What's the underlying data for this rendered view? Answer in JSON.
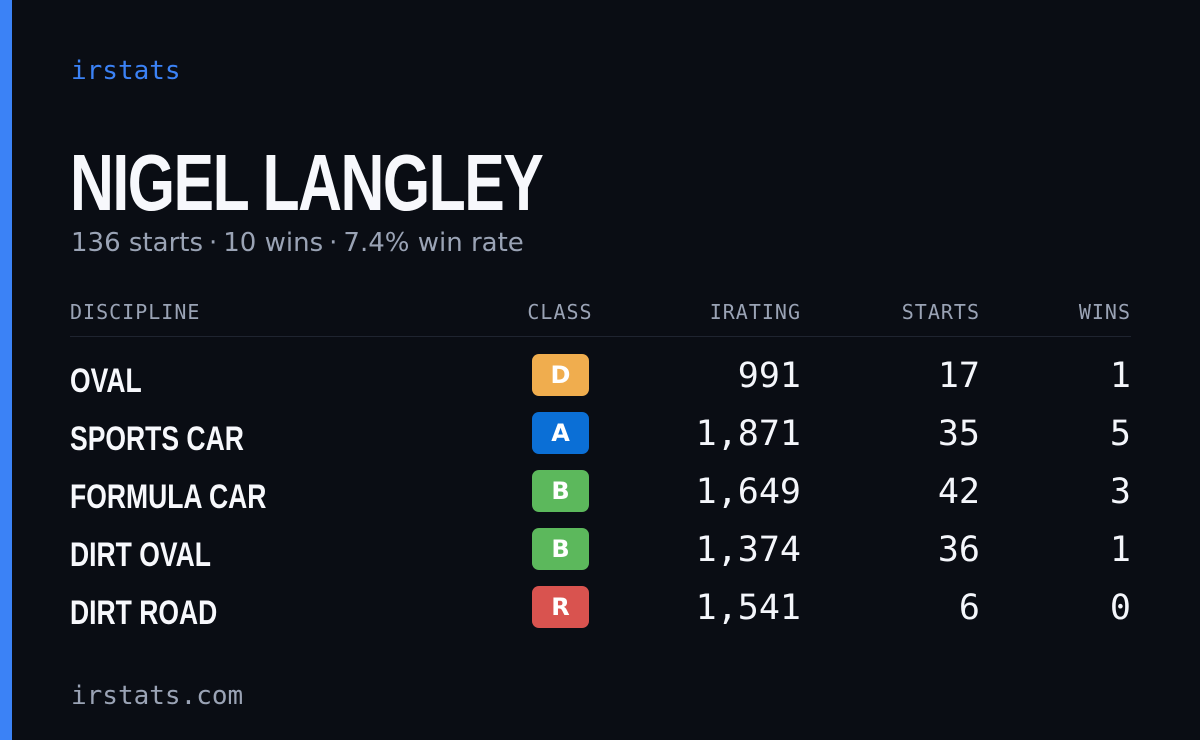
{
  "brand": "irstats",
  "driver": {
    "name": "NIGEL LANGLEY",
    "starts_text": "136 starts",
    "wins_text": "10 wins",
    "winrate_text": "7.4% win rate",
    "separator": "·"
  },
  "table": {
    "headers": {
      "discipline": "DISCIPLINE",
      "class": "CLASS",
      "irating": "IRATING",
      "starts": "STARTS",
      "wins": "WINS"
    },
    "rows": [
      {
        "discipline": "OVAL",
        "class": "D",
        "class_color": "#f0ad4e",
        "irating": "991",
        "starts": "17",
        "wins": "1"
      },
      {
        "discipline": "SPORTS CAR",
        "class": "A",
        "class_color": "#0b6fd6",
        "irating": "1,871",
        "starts": "35",
        "wins": "5"
      },
      {
        "discipline": "FORMULA CAR",
        "class": "B",
        "class_color": "#5cb85c",
        "irating": "1,649",
        "starts": "42",
        "wins": "3"
      },
      {
        "discipline": "DIRT OVAL",
        "class": "B",
        "class_color": "#5cb85c",
        "irating": "1,374",
        "starts": "36",
        "wins": "1"
      },
      {
        "discipline": "DIRT ROAD",
        "class": "R",
        "class_color": "#d9534f",
        "irating": "1,541",
        "starts": "6",
        "wins": "0"
      }
    ]
  },
  "footer": "irstats.com",
  "colors": {
    "accent": "#3b82f6",
    "background": "#0a0d14",
    "muted": "#9aa3b5"
  }
}
